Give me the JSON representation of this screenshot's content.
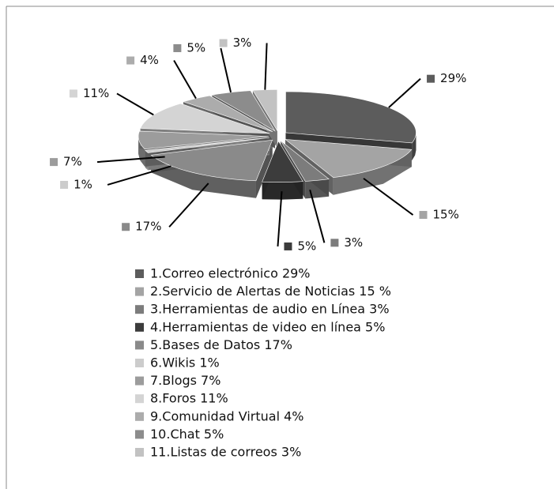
{
  "chart_data": {
    "type": "pie",
    "categories": [
      "1.Correo electrónico 29%",
      "2.Servicio de Alertas de Noticias 15 %",
      "3.Herramientas de audio en Línea 3%",
      "4.Herramientas de video en línea 5%",
      "5.Bases de Datos 17%",
      "6.Wikis 1%",
      "7.Blogs 7%",
      "8.Foros 11%",
      "9.Comunidad Virtual 4%",
      "10.Chat 5%",
      "11.Listas de correos 3%"
    ],
    "values": [
      29,
      15,
      3,
      5,
      17,
      1,
      7,
      11,
      4,
      5,
      3
    ],
    "value_labels": [
      "29%",
      "15%",
      "3%",
      "5%",
      "17%",
      "1%",
      "7%",
      "11%",
      "4%",
      "5%",
      "3%"
    ],
    "colors": [
      "#5c5c5c",
      "#a4a4a4",
      "#7c7c7c",
      "#3c3c3c",
      "#8a8a8a",
      "#cccccc",
      "#9c9c9c",
      "#d4d4d4",
      "#acacac",
      "#8c8c8c",
      "#c2c2c2"
    ],
    "legend": "bottom"
  }
}
